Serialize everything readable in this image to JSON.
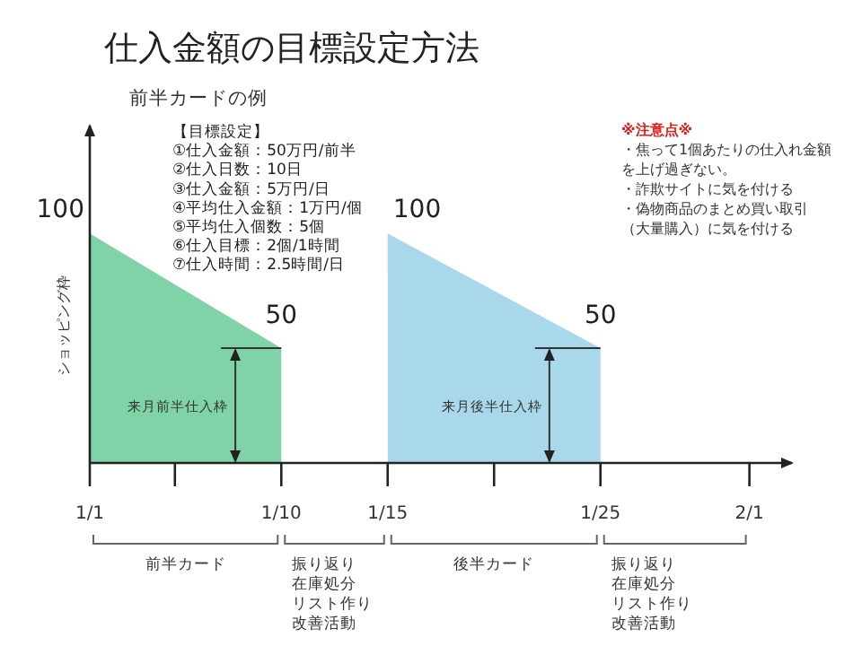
{
  "chart_data": {
    "type": "area",
    "title": "仕入金額の目標設定方法",
    "subtitle": "前半カードの例",
    "ylabel": "ショッピング枠",
    "xlim": [
      "--01-01",
      "--02-03"
    ],
    "xticks": [
      {
        "value": "--01-01",
        "label": "1/1"
      },
      {
        "value": "--01-05",
        "label": null
      },
      {
        "value": "--01-10",
        "label": "1/10"
      },
      {
        "value": "--01-15",
        "label": "1/15"
      },
      {
        "value": "--01-20",
        "label": null
      },
      {
        "value": "--01-25",
        "label": "1/25"
      },
      {
        "value": "--02-01",
        "label": "2/1"
      }
    ],
    "series": [
      {
        "color": "#7fd3a6",
        "x": [
          "--01-01",
          "--01-10"
        ],
        "values": [
          100,
          50
        ]
      },
      {
        "color": "#a8d8ea",
        "x": [
          "--01-15",
          "--01-25"
        ],
        "values": [
          100,
          50
        ]
      }
    ],
    "data_labels": true,
    "annotations": [
      "【目標設定】\n①仕入金額：50万円/前半\n②仕入日数：10日\n③仕入金額：5万円/日\n④平均仕入金額：1万円/個\n⑤平均仕入個数：5個\n⑥仕入目標：2個/1時間\n⑦仕入時間：2.5時間/日",
      "※注意点※",
      "・焦って1個あたりの仕入れ金額を上げ過ぎない。",
      "・詐欺サイトに気を付ける",
      "・偽物商品のまとめ買い取引（大量購入）に気を付ける",
      "来月前半仕入枠",
      "来月後半仕入枠",
      "前半カード",
      "振り返り",
      "在庫処分",
      "リスト作り",
      "改善活動",
      "後半カード",
      "振り返り",
      "在庫処分",
      "リスト作り",
      "改善活動"
    ]
  }
}
